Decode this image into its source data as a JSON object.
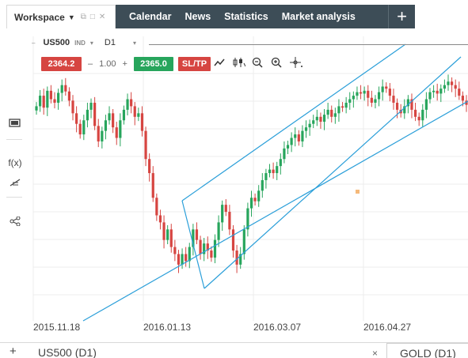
{
  "workspace": {
    "label": "Workspace"
  },
  "nav": {
    "items": [
      "Calendar",
      "News",
      "Statistics",
      "Market analysis"
    ],
    "plus": "+"
  },
  "chart_header": {
    "symbol": "US500",
    "market_tag": "IND",
    "timeframe": "D1"
  },
  "trade": {
    "sell_price": "2364.2",
    "quantity": "1.00",
    "minus": "–",
    "plus": "+",
    "buy_price": "2365.0",
    "sltp_label": "SL/TP"
  },
  "left_tools": {
    "fx_label": "f(x)"
  },
  "x_axis": {
    "labels": [
      "2015.11.18",
      "2016.01.13",
      "2016.03.07",
      "2016.04.27"
    ]
  },
  "bottom": {
    "plus": "+",
    "active_tab": "US500 (D1)",
    "close": "×",
    "second_tab": "GOLD (D1)"
  },
  "colors": {
    "nav_bg": "#3d4d57",
    "bull": "#27a55c",
    "bear": "#d64541",
    "channel": "#2b9fd9",
    "grid": "#ececec"
  },
  "chart_data": {
    "type": "candlestick",
    "timeframe": "D1",
    "candle_closes": [
      2080,
      2095,
      2078,
      2102,
      2090,
      2085,
      2099,
      2110,
      2101,
      2088,
      2070,
      2055,
      2040,
      2060,
      2075,
      2085,
      2052,
      2030,
      2045,
      2060,
      2070,
      2050,
      2035,
      2060,
      2075,
      2090,
      2080,
      2065,
      2070,
      2045,
      2005,
      1985,
      1950,
      1925,
      1915,
      1890,
      1905,
      1880,
      1870,
      1855,
      1870,
      1860,
      1880,
      1905,
      1890,
      1870,
      1885,
      1875,
      1865,
      1890,
      1915,
      1940,
      1930,
      1905,
      1875,
      1855,
      1870,
      1905,
      1935,
      1950,
      1945,
      1960,
      1975,
      1985,
      1990,
      1985,
      1995,
      2005,
      2020,
      2025,
      2035,
      2040,
      2030,
      2045,
      2050,
      2055,
      2060,
      2065,
      2058,
      2068,
      2075,
      2065,
      2070,
      2080,
      2078,
      2085,
      2090,
      2095,
      2100,
      2098,
      2102,
      2092,
      2085,
      2090,
      2100,
      2108,
      2105,
      2095,
      2085,
      2075,
      2070,
      2080,
      2090,
      2075,
      2065,
      2060,
      2075,
      2090,
      2100,
      2102,
      2098,
      2105,
      2110,
      2115,
      2110,
      2105,
      2095,
      2088,
      2082
    ],
    "channel": "ascending parallel channel (three lines)"
  }
}
